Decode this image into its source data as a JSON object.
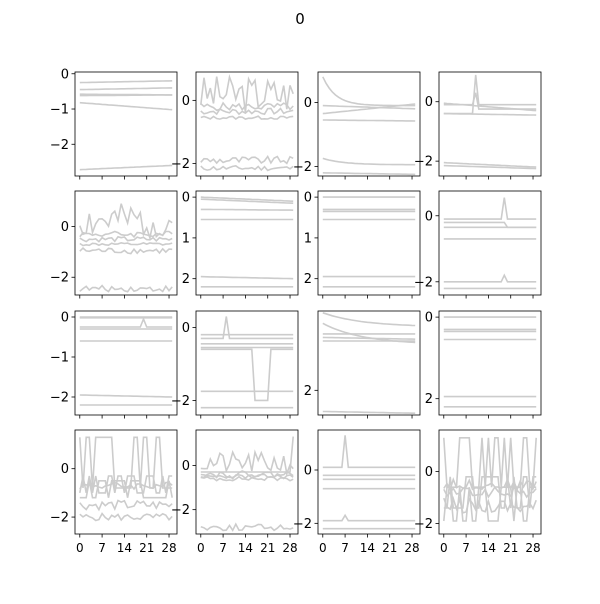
{
  "figure": {
    "title": "0",
    "line_color": "#cccccc"
  },
  "chart_data": {
    "type": "line",
    "layout": "4x4 small multiples",
    "x_ticks": [
      "0",
      "7",
      "14",
      "21",
      "28"
    ],
    "x_range": [
      -1.5,
      30.5
    ],
    "panels": [
      {
        "ylim": [
          -2.9,
          0.05
        ],
        "y_ticks": [
          {
            "v": 0,
            "label": "0"
          },
          {
            "v": -1,
            "label": "−1"
          },
          {
            "v": -2,
            "label": "−2"
          }
        ],
        "series": [
          {
            "kind": "lin",
            "a": -0.25,
            "b": -0.2
          },
          {
            "kind": "lin",
            "a": -0.45,
            "b": -0.4
          },
          {
            "kind": "lin",
            "a": -0.58,
            "b": -0.6
          },
          {
            "kind": "lin",
            "a": -0.62,
            "b": -0.6
          },
          {
            "kind": "lin",
            "a": -0.82,
            "b": -1.02
          },
          {
            "kind": "lin",
            "a": -2.72,
            "b": -2.6
          }
        ]
      },
      {
        "ylim": [
          -2.4,
          0.9
        ],
        "y_ticks": [
          {
            "v": 0,
            "label": "0"
          },
          {
            "v": -2,
            "label": "−2"
          }
        ],
        "series": [
          {
            "kind": "wig",
            "base": 0.2,
            "amp": 0.6,
            "seed": 3
          },
          {
            "kind": "wig",
            "base": -0.2,
            "amp": 0.12,
            "seed": 5
          },
          {
            "kind": "wig",
            "base": -0.35,
            "amp": 0.1,
            "seed": 7
          },
          {
            "kind": "wig",
            "base": -1.9,
            "amp": 0.12,
            "seed": 9
          },
          {
            "kind": "wig",
            "base": -2.15,
            "amp": 0.08,
            "seed": 11
          },
          {
            "kind": "wig",
            "base": -0.55,
            "amp": 0.05,
            "seed": 13
          }
        ]
      },
      {
        "ylim": [
          -2.3,
          0.95
        ],
        "y_ticks": [
          {
            "v": 0,
            "label": "0"
          },
          {
            "v": -2,
            "label": "−2"
          }
        ],
        "series": [
          {
            "kind": "dec",
            "a": 0.8,
            "b": -0.1,
            "k": 0.25
          },
          {
            "kind": "lin",
            "a": -0.35,
            "b": -0.05
          },
          {
            "kind": "lin",
            "a": -0.1,
            "b": -0.2
          },
          {
            "kind": "lin",
            "a": -0.55,
            "b": -0.58
          },
          {
            "kind": "dec",
            "a": -1.75,
            "b": -1.95,
            "k": 0.15
          },
          {
            "kind": "lin",
            "a": -2.2,
            "b": -2.25
          }
        ]
      },
      {
        "ylim": [
          -2.5,
          1.0
        ],
        "y_ticks": [
          {
            "v": 0,
            "label": "0"
          },
          {
            "v": -2,
            "label": "−2"
          }
        ],
        "series": [
          {
            "kind": "spk",
            "pre": -0.4,
            "at": 10,
            "peak": 0.9,
            "post": -0.1
          },
          {
            "kind": "spk",
            "pre": -0.1,
            "at": 10,
            "peak": 0.3,
            "post": -0.25
          },
          {
            "kind": "lin",
            "a": -0.4,
            "b": -0.45
          },
          {
            "kind": "lin",
            "a": -0.05,
            "b": -0.3
          },
          {
            "kind": "lin",
            "a": -2.05,
            "b": -2.2
          },
          {
            "kind": "lin",
            "a": -2.15,
            "b": -2.25
          }
        ]
      },
      {
        "ylim": [
          -2.7,
          1.4
        ],
        "y_ticks": [
          {
            "v": 0,
            "label": "0"
          },
          {
            "v": -2,
            "label": "−2"
          }
        ],
        "series": [
          {
            "kind": "wig",
            "base": 0.2,
            "amp": 0.7,
            "seed": 2
          },
          {
            "kind": "wig",
            "base": -0.3,
            "amp": 0.12,
            "seed": 4
          },
          {
            "kind": "wig",
            "base": -0.5,
            "amp": 0.1,
            "seed": 6
          },
          {
            "kind": "wig",
            "base": -0.95,
            "amp": 0.12,
            "seed": 8
          },
          {
            "kind": "wig",
            "base": -2.45,
            "amp": 0.12,
            "seed": 10
          },
          {
            "kind": "wig",
            "base": -0.7,
            "amp": 0.06,
            "seed": 12
          }
        ]
      },
      {
        "ylim": [
          -2.4,
          0.15
        ],
        "y_ticks": [
          {
            "v": 0,
            "label": "0"
          },
          {
            "v": -1,
            "label": "1"
          },
          {
            "v": -2,
            "label": "2"
          }
        ],
        "series": [
          {
            "kind": "lin",
            "a": 0.0,
            "b": -0.1
          },
          {
            "kind": "lin",
            "a": -0.05,
            "b": -0.15
          },
          {
            "kind": "lin",
            "a": -0.3,
            "b": -0.32
          },
          {
            "kind": "lin",
            "a": -0.55,
            "b": -0.55
          },
          {
            "kind": "lin",
            "a": -1.95,
            "b": -2.0
          },
          {
            "kind": "lin",
            "a": -2.2,
            "b": -2.2
          }
        ]
      },
      {
        "ylim": [
          -2.4,
          0.15
        ],
        "y_ticks": [
          {
            "v": 0,
            "label": "0"
          },
          {
            "v": -1,
            "label": "1"
          },
          {
            "v": -2,
            "label": "2"
          }
        ],
        "series": [
          {
            "kind": "lin",
            "a": 0.0,
            "b": 0.0
          },
          {
            "kind": "lin",
            "a": -0.3,
            "b": -0.3
          },
          {
            "kind": "lin",
            "a": -0.35,
            "b": -0.35
          },
          {
            "kind": "lin",
            "a": -0.55,
            "b": -0.55
          },
          {
            "kind": "lin",
            "a": -1.95,
            "b": -1.95
          },
          {
            "kind": "lin",
            "a": -2.2,
            "b": -2.2
          }
        ]
      },
      {
        "ylim": [
          -2.4,
          0.75
        ],
        "y_ticks": [
          {
            "v": 0,
            "label": "0"
          },
          {
            "v": -2,
            "label": "−2"
          }
        ],
        "series": [
          {
            "kind": "spk",
            "pre": -0.1,
            "at": 19,
            "peak": 0.55,
            "post": -0.1
          },
          {
            "kind": "spk",
            "pre": -0.2,
            "at": 19,
            "peak": -0.2,
            "post": -0.35
          },
          {
            "kind": "lin",
            "a": -0.35,
            "b": -0.35
          },
          {
            "kind": "lin",
            "a": -0.7,
            "b": -0.7
          },
          {
            "kind": "spk",
            "pre": -2.0,
            "at": 19,
            "peak": -1.8,
            "post": -2.0
          },
          {
            "kind": "lin",
            "a": -2.2,
            "b": -2.2
          }
        ]
      },
      {
        "ylim": [
          -2.45,
          0.15
        ],
        "y_ticks": [
          {
            "v": 0,
            "label": "0"
          },
          {
            "v": -1,
            "label": "−1"
          },
          {
            "v": -2,
            "label": "−2"
          }
        ],
        "series": [
          {
            "kind": "lin",
            "a": 0.0,
            "b": 0.0
          },
          {
            "kind": "lin",
            "a": -0.02,
            "b": -0.02
          },
          {
            "kind": "spk",
            "pre": -0.25,
            "at": 20,
            "peak": -0.05,
            "post": -0.25
          },
          {
            "kind": "lin",
            "a": -0.3,
            "b": -0.3
          },
          {
            "kind": "lin",
            "a": -0.6,
            "b": -0.6
          },
          {
            "kind": "lin",
            "a": -1.95,
            "b": -2.0
          },
          {
            "kind": "lin",
            "a": -2.2,
            "b": -2.2
          }
        ]
      },
      {
        "ylim": [
          -2.4,
          0.45
        ],
        "y_ticks": [
          {
            "v": 0,
            "label": "0"
          },
          {
            "v": -2,
            "label": "−2"
          }
        ],
        "series": [
          {
            "kind": "spk",
            "pre": -0.3,
            "at": 8,
            "peak": 0.3,
            "post": -0.3
          },
          {
            "kind": "lin",
            "a": -0.2,
            "b": -0.2
          },
          {
            "kind": "lin",
            "a": -0.45,
            "b": -0.45
          },
          {
            "kind": "lin",
            "a": -0.55,
            "b": -0.55
          },
          {
            "kind": "lin",
            "a": -1.75,
            "b": -1.75
          },
          {
            "kind": "lin",
            "a": -2.2,
            "b": -2.2
          },
          {
            "kind": "blk",
            "base": -0.6,
            "low": -2.0,
            "from": 17,
            "to": 21
          }
        ]
      },
      {
        "ylim": [
          -2.7,
          0.25
        ],
        "y_ticks": [
          {
            "v": -2,
            "label": "2"
          }
        ],
        "series": [
          {
            "kind": "dec",
            "a": 0.2,
            "b": -0.2,
            "k": 0.08
          },
          {
            "kind": "lin",
            "a": -0.4,
            "b": -0.4
          },
          {
            "kind": "lin",
            "a": -0.5,
            "b": -0.55
          },
          {
            "kind": "dec",
            "a": -0.1,
            "b": -0.7,
            "k": 0.08
          },
          {
            "kind": "lin",
            "a": -0.6,
            "b": -0.6
          },
          {
            "kind": "lin",
            "a": -2.6,
            "b": -2.65
          }
        ]
      },
      {
        "ylim": [
          -2.4,
          0.15
        ],
        "y_ticks": [
          {
            "v": 0,
            "label": "0"
          },
          {
            "v": -2,
            "label": "2"
          }
        ],
        "series": [
          {
            "kind": "lin",
            "a": 0.0,
            "b": 0.0
          },
          {
            "kind": "lin",
            "a": -0.3,
            "b": -0.3
          },
          {
            "kind": "lin",
            "a": -0.35,
            "b": -0.35
          },
          {
            "kind": "lin",
            "a": -0.55,
            "b": -0.55
          },
          {
            "kind": "lin",
            "a": -1.95,
            "b": -1.95
          },
          {
            "kind": "lin",
            "a": -2.2,
            "b": -2.2
          }
        ]
      },
      {
        "ylim": [
          -2.7,
          1.6
        ],
        "y_ticks": [
          {
            "v": 0,
            "label": "0"
          },
          {
            "v": -2,
            "label": "−2"
          }
        ],
        "series": [
          {
            "kind": "osc",
            "a": -0.8,
            "b": 1.3,
            "seed": 1
          },
          {
            "kind": "osc",
            "a": -1.2,
            "b": -0.5,
            "seed": 2
          },
          {
            "kind": "osc",
            "a": -1.0,
            "b": -0.3,
            "seed": 3
          },
          {
            "kind": "wig",
            "base": -0.7,
            "amp": 0.15,
            "seed": 4
          },
          {
            "kind": "wig",
            "base": -2.0,
            "amp": 0.15,
            "seed": 5
          },
          {
            "kind": "wig",
            "base": -1.5,
            "amp": 0.2,
            "seed": 6
          }
        ]
      },
      {
        "ylim": [
          -3.1,
          1.6
        ],
        "y_ticks": [
          {
            "v": 0,
            "label": "0"
          },
          {
            "v": -2,
            "label": "−2"
          }
        ],
        "series": [
          {
            "kind": "wig",
            "base": 0.1,
            "amp": 0.5,
            "seed": 21
          },
          {
            "kind": "wig",
            "base": -0.4,
            "amp": 0.15,
            "seed": 22
          },
          {
            "kind": "wig",
            "base": -0.5,
            "amp": 0.1,
            "seed": 23
          },
          {
            "kind": "wig",
            "base": -0.6,
            "amp": 0.1,
            "seed": 24
          },
          {
            "kind": "wig",
            "base": -2.8,
            "amp": 0.15,
            "seed": 25
          },
          {
            "kind": "spk",
            "pre": -0.3,
            "at": 29,
            "peak": 1.3,
            "post": 1.3
          }
        ]
      },
      {
        "ylim": [
          -2.4,
          1.5
        ],
        "y_ticks": [
          {
            "v": 0,
            "label": "0"
          },
          {
            "v": -2,
            "label": "−2"
          }
        ],
        "series": [
          {
            "kind": "spk",
            "pre": 0.1,
            "at": 7,
            "peak": 1.3,
            "post": 0.1
          },
          {
            "kind": "lin",
            "a": -0.2,
            "b": -0.2
          },
          {
            "kind": "lin",
            "a": -0.35,
            "b": -0.35
          },
          {
            "kind": "lin",
            "a": -0.7,
            "b": -0.7
          },
          {
            "kind": "spk",
            "pre": -1.9,
            "at": 7,
            "peak": -1.7,
            "post": -1.9
          },
          {
            "kind": "lin",
            "a": -2.2,
            "b": -2.2
          }
        ]
      },
      {
        "ylim": [
          -2.4,
          1.6
        ],
        "y_ticks": [
          {
            "v": 0,
            "label": "0"
          },
          {
            "v": -2,
            "label": "−2"
          }
        ],
        "series": [
          {
            "kind": "osc",
            "a": -0.6,
            "b": 1.3,
            "seed": 31
          },
          {
            "kind": "osc",
            "a": -1.4,
            "b": -0.2,
            "seed": 32
          },
          {
            "kind": "osc",
            "a": -1.9,
            "b": -0.6,
            "seed": 33
          },
          {
            "kind": "wig",
            "base": -0.5,
            "amp": 0.2,
            "seed": 34
          },
          {
            "kind": "wig",
            "base": -1.3,
            "amp": 0.3,
            "seed": 35
          },
          {
            "kind": "wig",
            "base": -0.8,
            "amp": 0.2,
            "seed": 36
          }
        ]
      }
    ]
  }
}
